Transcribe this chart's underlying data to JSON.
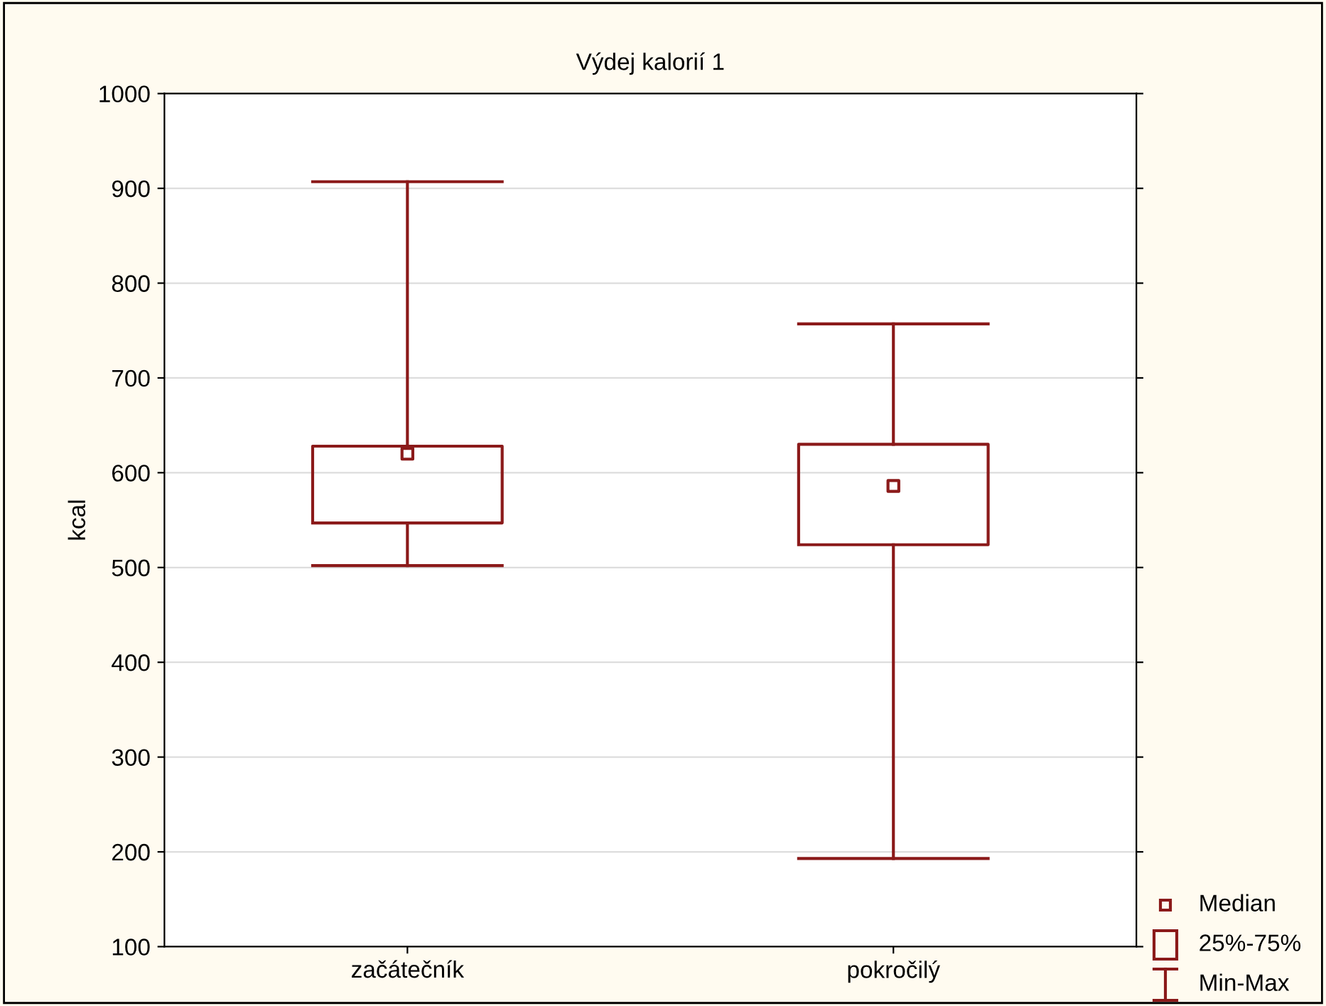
{
  "chart_data": {
    "type": "box",
    "title": "Výdej kalorií 1",
    "ylabel": "kcal",
    "categories": [
      "začátečník",
      "pokročilý"
    ],
    "boxes": [
      {
        "low": 502,
        "q1": 547,
        "median": 620,
        "q3": 628,
        "high": 907
      },
      {
        "low": 193,
        "q1": 524,
        "median": 586,
        "q3": 630,
        "high": 757
      }
    ],
    "color": "#8b1a1a",
    "ylim": [
      100,
      1000
    ],
    "yticks": [
      100,
      200,
      300,
      400,
      500,
      600,
      700,
      800,
      900,
      1000
    ],
    "grid": "y",
    "annotations": [
      "Median",
      "25%-75%",
      "Min-Max"
    ]
  }
}
